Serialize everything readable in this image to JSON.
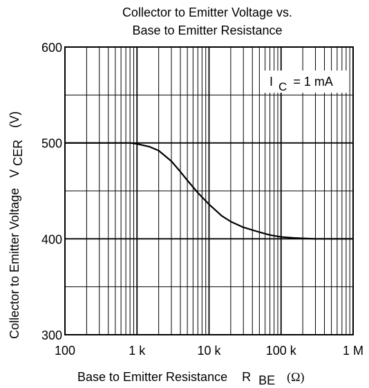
{
  "chart_data": {
    "type": "line",
    "title_line1": "Collector to Emitter Voltage vs.",
    "title_line2": "Base to Emitter Resistance",
    "x_scale": "log",
    "xlim": [
      100,
      1000000
    ],
    "ylim": [
      300,
      600
    ],
    "grid": true,
    "x_ticks": [
      {
        "value": 100,
        "label": "100"
      },
      {
        "value": 1000,
        "label": "1 k"
      },
      {
        "value": 10000,
        "label": "10 k"
      },
      {
        "value": 100000,
        "label": "100 k"
      },
      {
        "value": 1000000,
        "label": "1 M"
      }
    ],
    "y_ticks": [
      {
        "value": 300,
        "label": "300"
      },
      {
        "value": 400,
        "label": "400"
      },
      {
        "value": 500,
        "label": "500"
      },
      {
        "value": 600,
        "label": "600"
      }
    ],
    "xlabel": {
      "main": "Base to Emitter Resistance",
      "symbol": "R",
      "subscript": "BE",
      "unit": "(Ω)"
    },
    "ylabel": {
      "main": "Collector to Emitter Voltage",
      "symbol": "V",
      "subscript": "CER",
      "unit": "(V)"
    },
    "annotation": {
      "symbol": "I",
      "subscript": "C",
      "rest": "= 1 mA"
    },
    "series": [
      {
        "x": [
          100,
          500,
          800,
          1000,
          1500,
          2000,
          3000,
          4000,
          5000,
          7000,
          10000,
          15000,
          20000,
          30000,
          50000,
          70000,
          100000,
          150000,
          200000,
          300000,
          500000,
          1000000
        ],
        "y": [
          500,
          500,
          500,
          499,
          496,
          492,
          481,
          470,
          461,
          448,
          436,
          424,
          418,
          412,
          407,
          404,
          402,
          401,
          400.5,
          400,
          400,
          400
        ]
      }
    ]
  }
}
